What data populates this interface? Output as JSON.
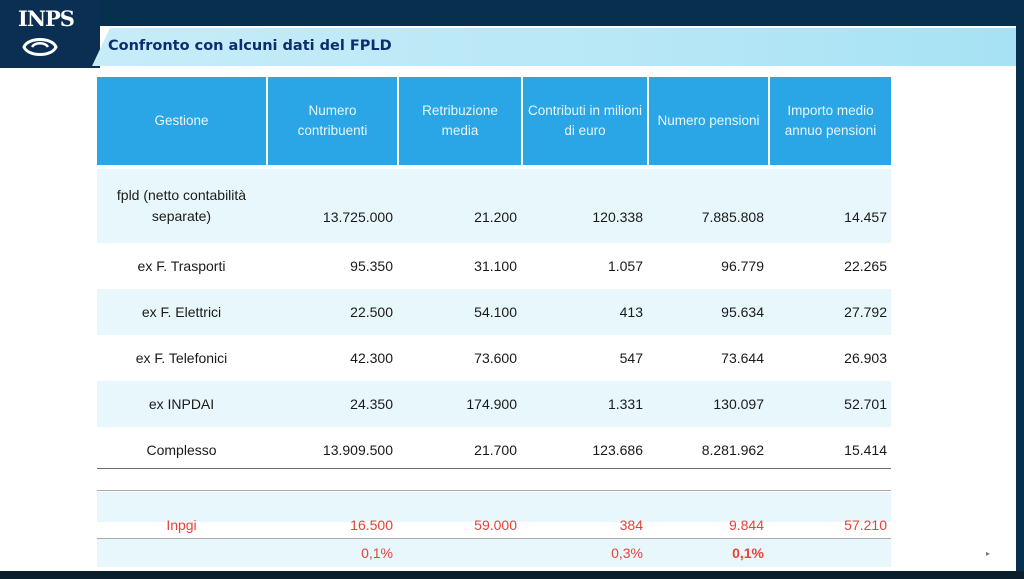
{
  "header": {
    "logo_text": "INPS",
    "slide_title": "Confronto con alcuni dati del FPLD"
  },
  "table": {
    "columns": [
      "Gestione",
      "Numero contribuenti",
      "Retribuzione media",
      "Contributi in milioni di euro",
      "Numero pensioni",
      "Importo medio annuo pensioni"
    ],
    "rows": [
      {
        "label": "fpld (netto contabilità separate)",
        "values": [
          "13.725.000",
          "21.200",
          "120.338",
          "7.885.808",
          "14.457"
        ]
      },
      {
        "label": "ex F. Trasporti",
        "values": [
          "95.350",
          "31.100",
          "1.057",
          "96.779",
          "22.265"
        ]
      },
      {
        "label": "ex F. Elettrici",
        "values": [
          "22.500",
          "54.100",
          "413",
          "95.634",
          "27.792"
        ]
      },
      {
        "label": "ex F. Telefonici",
        "values": [
          "42.300",
          "73.600",
          "547",
          "73.644",
          "26.903"
        ]
      },
      {
        "label": "ex INPDAI",
        "values": [
          "24.350",
          "174.900",
          "1.331",
          "130.097",
          "52.701"
        ]
      },
      {
        "label": "Complesso",
        "values": [
          "13.909.500",
          "21.700",
          "123.686",
          "8.281.962",
          "15.414"
        ]
      }
    ],
    "inpgi_row": {
      "label": "Inpgi",
      "values": [
        "16.500",
        "59.000",
        "384",
        "9.844",
        "57.210"
      ]
    },
    "percent_row": {
      "label": "",
      "values": [
        "0,1%",
        "",
        "0,3%",
        "0,1%",
        ""
      ]
    }
  },
  "colors": {
    "header_fill": "#2aa5e6",
    "title_bar": "#b7e7f6",
    "title_text": "#0b2f6e",
    "highlight": "#e8423a",
    "row_shade": "#e8f7fb"
  },
  "icons": [
    "inps-logo-swoosh-icon"
  ]
}
